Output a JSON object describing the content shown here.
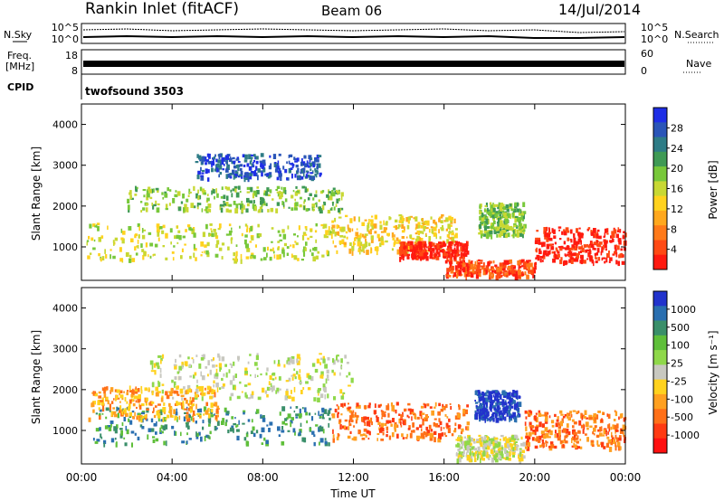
{
  "header": {
    "station": "Rankin Inlet (fitACF)",
    "beam": "Beam 06",
    "date": "14/Jul/2014"
  },
  "summary_panels": {
    "nsky_label": "N.Sky",
    "nsky_ticks": [
      "10^5",
      "10^0"
    ],
    "nsearch_label": "N.Search",
    "nsearch_ticks": [
      "10^5",
      "10^0"
    ],
    "freq_label_1": "Freq.",
    "freq_label_2": "[MHz]",
    "freq_ticks": [
      "18",
      "8"
    ],
    "nave_label": "Nave",
    "nave_ticks": [
      "60",
      "0"
    ],
    "cpid_label": "CPID",
    "cpid_value": "twofsound 3503"
  },
  "chart_data": [
    {
      "type": "heatmap",
      "panel": "power",
      "ylabel": "Slant Range [km]",
      "xlabel": "",
      "x_ticks": [
        "00:00",
        "04:00",
        "08:00",
        "12:00",
        "16:00",
        "20:00",
        "00:00"
      ],
      "xlim_hours": [
        0,
        24
      ],
      "y_ticks": [
        1000,
        2000,
        3000,
        4000
      ],
      "ylim": [
        180,
        4500
      ],
      "colorbar": {
        "label": "Power [dB]",
        "ticks": [
          "4",
          "8",
          "12",
          "16",
          "20",
          "24",
          "28"
        ],
        "colors": [
          "#1e2ee6",
          "#2a55b8",
          "#2e7c86",
          "#3f9a55",
          "#78c83a",
          "#c8d833",
          "#ffd21e",
          "#ffa81e",
          "#ff7a1a",
          "#ff4a14",
          "#ff1a10"
        ]
      },
      "regions": [
        {
          "x0": 0.2,
          "x1": 11.0,
          "y0": 700,
          "y1": 1600,
          "level": 5
        },
        {
          "x0": 2.0,
          "x1": 11.5,
          "y0": 1900,
          "y1": 2500,
          "level": 4
        },
        {
          "x0": 5.0,
          "x1": 10.5,
          "y0": 2700,
          "y1": 3300,
          "level": 1
        },
        {
          "x0": 11.0,
          "x1": 16.5,
          "y0": 900,
          "y1": 1800,
          "level": 6
        },
        {
          "x0": 14.0,
          "x1": 17.0,
          "y0": 750,
          "y1": 1150,
          "level": 10
        },
        {
          "x0": 16.0,
          "x1": 20.0,
          "y0": 300,
          "y1": 700,
          "level": 9
        },
        {
          "x0": 17.5,
          "x1": 19.5,
          "y0": 1300,
          "y1": 2100,
          "level": 4
        },
        {
          "x0": 20.0,
          "x1": 24.0,
          "y0": 650,
          "y1": 1500,
          "level": 10
        }
      ]
    },
    {
      "type": "heatmap",
      "panel": "velocity",
      "ylabel": "Slant Range [km]",
      "xlabel": "Time UT",
      "x_ticks": [
        "00:00",
        "04:00",
        "08:00",
        "12:00",
        "16:00",
        "20:00",
        "00:00"
      ],
      "xlim_hours": [
        0,
        24
      ],
      "y_ticks": [
        1000,
        2000,
        3000,
        4000
      ],
      "ylim": [
        180,
        4500
      ],
      "colorbar": {
        "label": "Velocity [m s⁻¹]",
        "ticks": [
          "1000",
          "500",
          "100",
          "25",
          "-25",
          "-100",
          "-500",
          "-1000"
        ],
        "colors": [
          "#2233cc",
          "#2a6fb0",
          "#3a8f6a",
          "#5fbf3a",
          "#8fd84a",
          "#c8c8c0",
          "#ffd21e",
          "#ffa020",
          "#ff7018",
          "#ff3a12",
          "#ff1010"
        ]
      },
      "regions": [
        {
          "x0": 3.0,
          "x1": 12.0,
          "y0": 1800,
          "y1": 2900,
          "level": 5
        },
        {
          "x0": 0.5,
          "x1": 11.0,
          "y0": 700,
          "y1": 1600,
          "level": 2
        },
        {
          "x0": 0.3,
          "x1": 6.0,
          "y0": 1300,
          "y1": 2100,
          "level": 7
        },
        {
          "x0": 11.0,
          "x1": 17.0,
          "y0": 800,
          "y1": 1700,
          "level": 8
        },
        {
          "x0": 17.3,
          "x1": 19.3,
          "y0": 1300,
          "y1": 2000,
          "level": 0
        },
        {
          "x0": 16.5,
          "x1": 19.5,
          "y0": 300,
          "y1": 900,
          "level": 5
        },
        {
          "x0": 19.5,
          "x1": 24.0,
          "y0": 600,
          "y1": 1500,
          "level": 8
        }
      ]
    }
  ]
}
